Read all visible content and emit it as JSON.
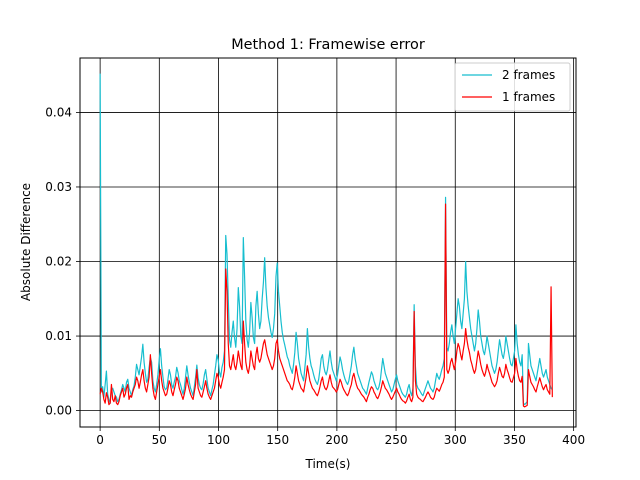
{
  "chart_data": {
    "type": "line",
    "title": "Method 1: Framewise error",
    "xlabel": "Time(s)",
    "ylabel": "Absolute Difference",
    "xlim": [
      -17,
      402
    ],
    "ylim": [
      -0.0022,
      0.0473
    ],
    "xticks": [
      0,
      50,
      100,
      150,
      200,
      250,
      300,
      350,
      400
    ],
    "yticks": [
      0.0,
      0.01,
      0.02,
      0.03,
      0.04
    ],
    "xtick_labels": [
      "0",
      "50",
      "100",
      "150",
      "200",
      "250",
      "300",
      "350",
      "400"
    ],
    "ytick_labels": [
      "0.00",
      "0.01",
      "0.02",
      "0.03",
      "0.04"
    ],
    "grid": true,
    "legend_position": "top-right",
    "series": [
      {
        "name": "2 frames",
        "color": "#17becf",
        "values": [
          0.0452,
          0.0025,
          0.0032,
          0.0018,
          0.0035,
          0.0053,
          0.0022,
          0.0015,
          0.001,
          0.0028,
          0.003,
          0.0025,
          0.002,
          0.0018,
          0.0012,
          0.0015,
          0.0022,
          0.0028,
          0.0035,
          0.003,
          0.0025,
          0.0038,
          0.0042,
          0.003,
          0.0025,
          0.002,
          0.0028,
          0.0033,
          0.0045,
          0.0062,
          0.0055,
          0.0048,
          0.006,
          0.0072,
          0.0089,
          0.0065,
          0.005,
          0.0038,
          0.0042,
          0.0058,
          0.0071,
          0.0065,
          0.004,
          0.003,
          0.0025,
          0.0035,
          0.0048,
          0.0068,
          0.0083,
          0.006,
          0.0045,
          0.0032,
          0.0028,
          0.003,
          0.0042,
          0.0055,
          0.0048,
          0.0035,
          0.003,
          0.0038,
          0.0045,
          0.0058,
          0.0051,
          0.004,
          0.0035,
          0.0028,
          0.0022,
          0.003,
          0.0045,
          0.006,
          0.0048,
          0.0038,
          0.003,
          0.0025,
          0.002,
          0.0032,
          0.0045,
          0.0061,
          0.0044,
          0.0035,
          0.003,
          0.0028,
          0.0036,
          0.0048,
          0.0055,
          0.0042,
          0.003,
          0.0025,
          0.002,
          0.0028,
          0.0035,
          0.0048,
          0.006,
          0.0075,
          0.0068,
          0.0052,
          0.0045,
          0.0058,
          0.0065,
          0.008,
          0.0235,
          0.021,
          0.015,
          0.0095,
          0.0085,
          0.0105,
          0.012,
          0.0098,
          0.0085,
          0.011,
          0.0165,
          0.014,
          0.01,
          0.009,
          0.0232,
          0.018,
          0.012,
          0.0095,
          0.0085,
          0.0105,
          0.0145,
          0.0125,
          0.0098,
          0.009,
          0.014,
          0.016,
          0.013,
          0.011,
          0.012,
          0.015,
          0.0172,
          0.0205,
          0.0165,
          0.014,
          0.0125,
          0.0115,
          0.0105,
          0.0098,
          0.011,
          0.013,
          0.018,
          0.0198,
          0.016,
          0.014,
          0.012,
          0.0105,
          0.0095,
          0.0088,
          0.008,
          0.0072,
          0.0068,
          0.006,
          0.0055,
          0.005,
          0.0062,
          0.0078,
          0.0105,
          0.009,
          0.007,
          0.006,
          0.005,
          0.0045,
          0.004,
          0.0058,
          0.0075,
          0.011,
          0.0085,
          0.007,
          0.006,
          0.0055,
          0.0048,
          0.0042,
          0.0038,
          0.0035,
          0.0042,
          0.0055,
          0.007,
          0.0075,
          0.006,
          0.0052,
          0.0048,
          0.0055,
          0.0068,
          0.008,
          0.0065,
          0.0055,
          0.005,
          0.0045,
          0.004,
          0.0048,
          0.006,
          0.0072,
          0.0065,
          0.0055,
          0.0048,
          0.0042,
          0.0038,
          0.0035,
          0.004,
          0.005,
          0.006,
          0.0075,
          0.0085,
          0.007,
          0.006,
          0.005,
          0.0045,
          0.004,
          0.0035,
          0.003,
          0.0028,
          0.0025,
          0.0022,
          0.003,
          0.0038,
          0.0045,
          0.0052,
          0.0048,
          0.004,
          0.0035,
          0.003,
          0.0028,
          0.0032,
          0.004,
          0.0055,
          0.007,
          0.006,
          0.005,
          0.0045,
          0.004,
          0.0035,
          0.003,
          0.0025,
          0.0028,
          0.0035,
          0.0042,
          0.0048,
          0.004,
          0.0035,
          0.003,
          0.0025,
          0.0022,
          0.002,
          0.0018,
          0.0022,
          0.003,
          0.0035,
          0.0025,
          0.002,
          0.003,
          0.0142,
          0.006,
          0.0035,
          0.003,
          0.0028,
          0.0025,
          0.0022,
          0.002,
          0.0025,
          0.003,
          0.0035,
          0.004,
          0.0035,
          0.003,
          0.0028,
          0.0025,
          0.003,
          0.004,
          0.005,
          0.0045,
          0.0042,
          0.0048,
          0.0055,
          0.006,
          0.007,
          0.0286,
          0.0085,
          0.008,
          0.009,
          0.0105,
          0.0115,
          0.01,
          0.009,
          0.011,
          0.013,
          0.015,
          0.014,
          0.012,
          0.011,
          0.013,
          0.015,
          0.02,
          0.016,
          0.014,
          0.0125,
          0.011,
          0.01,
          0.009,
          0.008,
          0.009,
          0.011,
          0.0135,
          0.012,
          0.01,
          0.009,
          0.008,
          0.0075,
          0.0085,
          0.01,
          0.009,
          0.008,
          0.007,
          0.006,
          0.0055,
          0.005,
          0.0055,
          0.0065,
          0.008,
          0.0095,
          0.0085,
          0.0075,
          0.007,
          0.008,
          0.01,
          0.009,
          0.008,
          0.007,
          0.0062,
          0.006,
          0.007,
          0.008,
          0.0115,
          0.009,
          0.0075,
          0.0065,
          0.006,
          0.0075,
          0.001,
          0.0008,
          0.001,
          0.0012,
          0.009,
          0.0075,
          0.006,
          0.0055,
          0.005,
          0.0045,
          0.004,
          0.005,
          0.006,
          0.007,
          0.006,
          0.005,
          0.0045,
          0.005,
          0.0055,
          0.0045,
          0.004,
          0.0035,
          0.003,
          0.0028
        ]
      },
      {
        "name": "1 frames",
        "color": "#ff0000",
        "values": [
          0.0022,
          0.003,
          0.0025,
          0.0015,
          0.001,
          0.0024,
          0.0018,
          0.0008,
          0.001,
          0.0035,
          0.0015,
          0.0012,
          0.002,
          0.001,
          0.0008,
          0.0012,
          0.002,
          0.0025,
          0.003,
          0.0018,
          0.0022,
          0.003,
          0.0035,
          0.0015,
          0.002,
          0.0018,
          0.0025,
          0.003,
          0.0035,
          0.0045,
          0.004,
          0.003,
          0.0038,
          0.0048,
          0.0055,
          0.004,
          0.003,
          0.0025,
          0.0035,
          0.0045,
          0.0075,
          0.005,
          0.003,
          0.002,
          0.0015,
          0.0025,
          0.0035,
          0.0045,
          0.0055,
          0.004,
          0.003,
          0.0025,
          0.002,
          0.0022,
          0.003,
          0.004,
          0.0035,
          0.0025,
          0.002,
          0.0028,
          0.0035,
          0.0045,
          0.004,
          0.003,
          0.0025,
          0.002,
          0.0015,
          0.0022,
          0.003,
          0.0045,
          0.0035,
          0.0028,
          0.0022,
          0.0018,
          0.0015,
          0.0025,
          0.0035,
          0.0055,
          0.003,
          0.0025,
          0.002,
          0.0018,
          0.0025,
          0.0032,
          0.004,
          0.003,
          0.0022,
          0.0018,
          0.0015,
          0.002,
          0.0025,
          0.003,
          0.004,
          0.005,
          0.0045,
          0.0035,
          0.003,
          0.0038,
          0.0045,
          0.0055,
          0.019,
          0.016,
          0.009,
          0.006,
          0.0055,
          0.0065,
          0.0075,
          0.006,
          0.0055,
          0.0065,
          0.008,
          0.007,
          0.006,
          0.0055,
          0.012,
          0.009,
          0.0065,
          0.0055,
          0.005,
          0.006,
          0.008,
          0.007,
          0.006,
          0.0055,
          0.0075,
          0.0085,
          0.007,
          0.0065,
          0.007,
          0.008,
          0.009,
          0.0095,
          0.0085,
          0.0075,
          0.007,
          0.0065,
          0.006,
          0.0055,
          0.006,
          0.007,
          0.009,
          0.0095,
          0.008,
          0.007,
          0.0065,
          0.006,
          0.0055,
          0.005,
          0.0045,
          0.004,
          0.0038,
          0.0035,
          0.003,
          0.0028,
          0.0035,
          0.0045,
          0.006,
          0.005,
          0.004,
          0.0035,
          0.003,
          0.0028,
          0.0025,
          0.0035,
          0.0045,
          0.006,
          0.005,
          0.004,
          0.0035,
          0.003,
          0.0028,
          0.0025,
          0.0022,
          0.002,
          0.0025,
          0.0032,
          0.004,
          0.0045,
          0.0035,
          0.003,
          0.0028,
          0.0032,
          0.004,
          0.0048,
          0.0038,
          0.0032,
          0.003,
          0.0028,
          0.0025,
          0.0028,
          0.0035,
          0.0042,
          0.0038,
          0.0032,
          0.0028,
          0.0025,
          0.0022,
          0.002,
          0.0024,
          0.003,
          0.0035,
          0.0045,
          0.005,
          0.0042,
          0.0035,
          0.003,
          0.0028,
          0.0025,
          0.0022,
          0.002,
          0.0018,
          0.0015,
          0.0012,
          0.0018,
          0.0022,
          0.0028,
          0.0032,
          0.003,
          0.0025,
          0.0022,
          0.0018,
          0.0016,
          0.002,
          0.0025,
          0.0032,
          0.004,
          0.0035,
          0.003,
          0.0028,
          0.0025,
          0.0022,
          0.0018,
          0.0015,
          0.0018,
          0.0022,
          0.0026,
          0.003,
          0.0025,
          0.0022,
          0.0018,
          0.0015,
          0.0013,
          0.0012,
          0.001,
          0.0013,
          0.0018,
          0.0022,
          0.0015,
          0.0012,
          0.0018,
          0.0133,
          0.004,
          0.0022,
          0.0018,
          0.0016,
          0.0015,
          0.0013,
          0.0012,
          0.0015,
          0.0018,
          0.0022,
          0.0025,
          0.0022,
          0.0018,
          0.0016,
          0.0015,
          0.0018,
          0.0025,
          0.003,
          0.0028,
          0.0026,
          0.003,
          0.0035,
          0.0038,
          0.0045,
          0.0277,
          0.0055,
          0.005,
          0.0055,
          0.0065,
          0.007,
          0.0062,
          0.0055,
          0.0065,
          0.008,
          0.009,
          0.0085,
          0.0075,
          0.0068,
          0.008,
          0.009,
          0.011,
          0.0095,
          0.0085,
          0.0078,
          0.0068,
          0.0062,
          0.0055,
          0.005,
          0.0055,
          0.0068,
          0.008,
          0.0072,
          0.0062,
          0.0055,
          0.005,
          0.0046,
          0.0052,
          0.0062,
          0.0055,
          0.005,
          0.0044,
          0.0038,
          0.0035,
          0.0032,
          0.0035,
          0.004,
          0.005,
          0.0058,
          0.0052,
          0.0046,
          0.0044,
          0.005,
          0.0062,
          0.0055,
          0.005,
          0.0044,
          0.0039,
          0.0038,
          0.0044,
          0.005,
          0.007,
          0.0055,
          0.0046,
          0.004,
          0.0038,
          0.0046,
          0.0006,
          0.0005,
          0.0006,
          0.0007,
          0.0055,
          0.0046,
          0.0038,
          0.0035,
          0.0032,
          0.0028,
          0.0025,
          0.0032,
          0.0038,
          0.0044,
          0.0038,
          0.0032,
          0.0028,
          0.0032,
          0.0035,
          0.0028,
          0.0025,
          0.0022,
          0.0166,
          0.0018
        ]
      }
    ]
  }
}
